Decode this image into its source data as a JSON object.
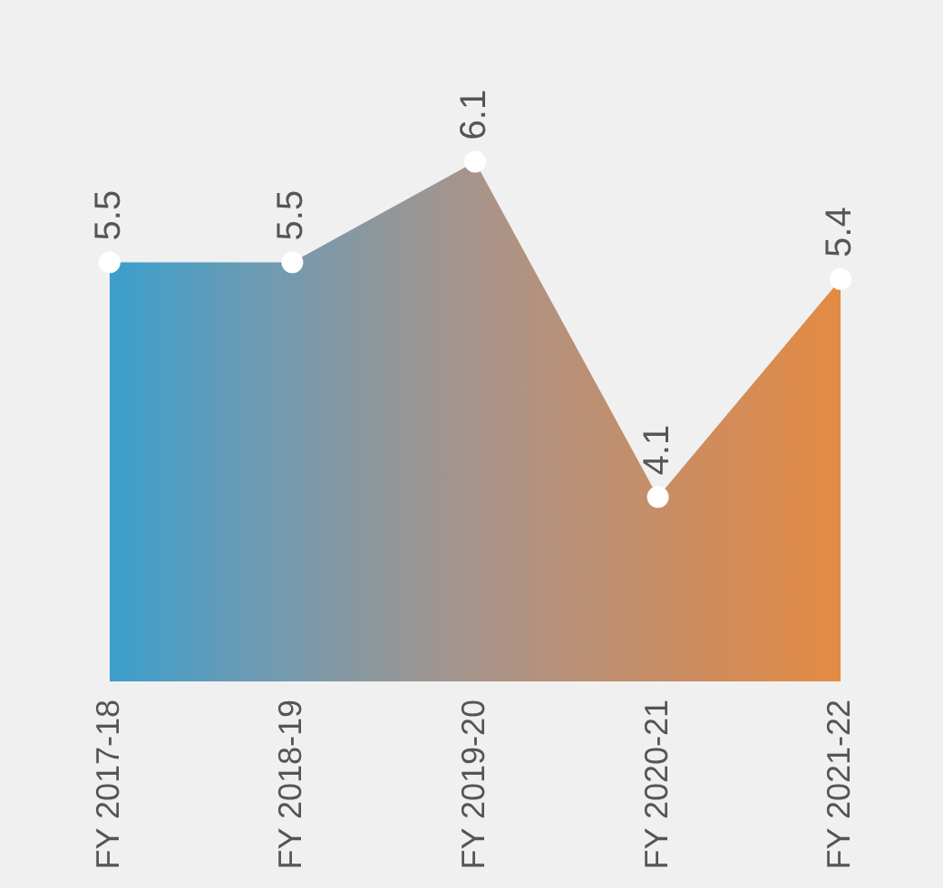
{
  "chart_data": {
    "type": "area",
    "categories": [
      "FY 2017-18",
      "FY 2018-19",
      "FY 2019-20",
      "FY 2020-21",
      "FY 2021-22"
    ],
    "series": [
      {
        "values": [
          5.5,
          5.5,
          6.1,
          4.1,
          5.4
        ],
        "colors": [
          "#1ba1dc",
          "#6a9bb5",
          "#a8948a",
          "#cf8c5e",
          "#f28a30"
        ]
      }
    ],
    "data_labels": true,
    "marker": "circle",
    "grid": false,
    "legend": false,
    "tick_labels": "x"
  }
}
